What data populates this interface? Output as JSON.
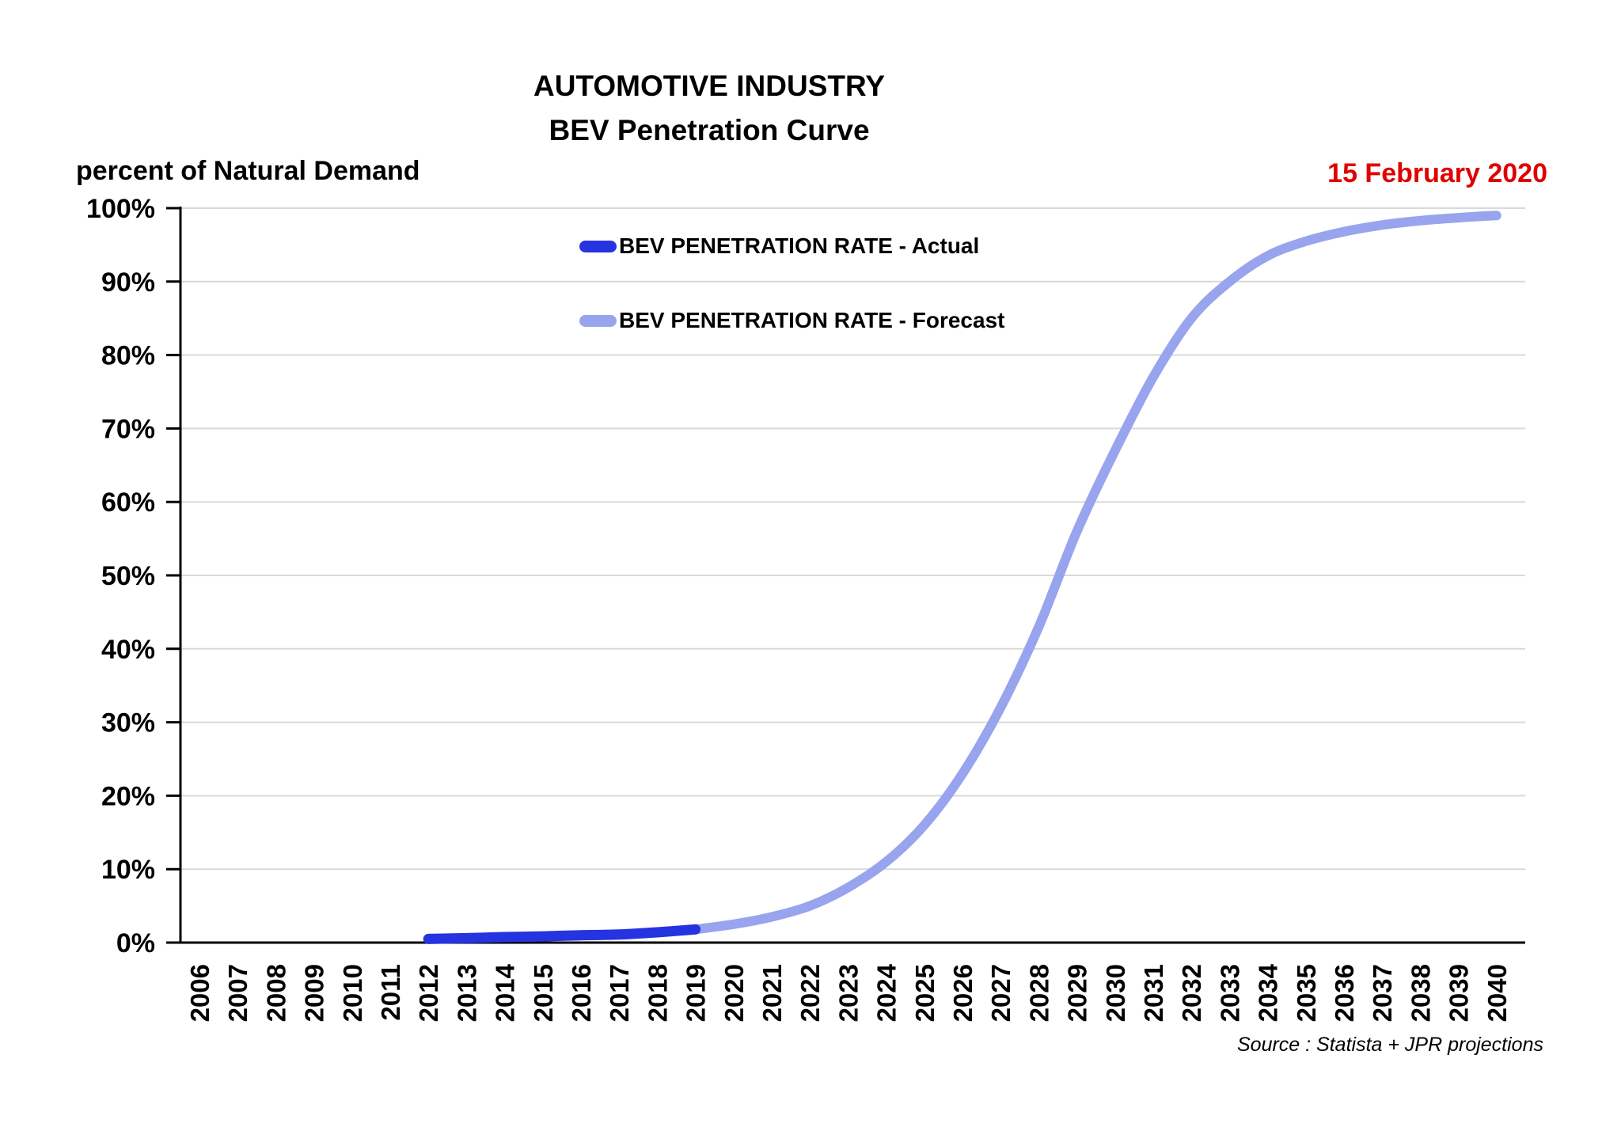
{
  "header": {
    "title_line1": "AUTOMOTIVE INDUSTRY",
    "title_line2": "BEV Penetration Curve",
    "y_axis_title": "percent of Natural Demand",
    "date": "15 February 2020",
    "date_color": "#E00000"
  },
  "footer": {
    "source": "Source : Statista + JPR projections"
  },
  "colors": {
    "actual_line": "#2533E0",
    "forecast_line": "#98A4ED",
    "gridline": "#D9D9D9",
    "axis": "#000000",
    "text": "#000000"
  },
  "chart_data": {
    "type": "line",
    "title": "AUTOMOTIVE INDUSTRY",
    "subtitle": "BEV Penetration Curve",
    "xlabel": "",
    "ylabel": "percent of Natural Demand",
    "ylim": [
      0,
      100
    ],
    "ytick_step": 10,
    "ytick_labels": [
      "0%",
      "10%",
      "20%",
      "30%",
      "40%",
      "50%",
      "60%",
      "70%",
      "80%",
      "90%",
      "100%"
    ],
    "categories": [
      "2006",
      "2007",
      "2008",
      "2009",
      "2010",
      "2011",
      "2012",
      "2013",
      "2014",
      "2015",
      "2016",
      "2017",
      "2018",
      "2019",
      "2020",
      "2021",
      "2022",
      "2023",
      "2024",
      "2025",
      "2026",
      "2027",
      "2028",
      "2029",
      "2030",
      "2031",
      "2032",
      "2033",
      "2034",
      "2035",
      "2036",
      "2037",
      "2038",
      "2039",
      "2040"
    ],
    "grid": "horizontal",
    "legend_position": "top-left-inside",
    "series": [
      {
        "name": "BEV PENETRATION RATE - Actual",
        "color": "#2533E0",
        "points": [
          [
            2012,
            0.5
          ],
          [
            2013,
            0.6
          ],
          [
            2014,
            0.75
          ],
          [
            2015,
            0.85
          ],
          [
            2016,
            1.0
          ],
          [
            2017,
            1.1
          ],
          [
            2018,
            1.4
          ],
          [
            2019,
            1.8
          ]
        ]
      },
      {
        "name": "BEV PENETRATION RATE - Forecast",
        "color": "#98A4ED",
        "points": [
          [
            2019,
            1.8
          ],
          [
            2020,
            2.5
          ],
          [
            2021,
            3.5
          ],
          [
            2022,
            5.0
          ],
          [
            2023,
            7.5
          ],
          [
            2024,
            11.0
          ],
          [
            2025,
            16.0
          ],
          [
            2026,
            23.0
          ],
          [
            2027,
            32.0
          ],
          [
            2028,
            43.0
          ],
          [
            2029,
            56.0
          ],
          [
            2030,
            67.0
          ],
          [
            2031,
            77.0
          ],
          [
            2032,
            85.0
          ],
          [
            2033,
            90.0
          ],
          [
            2034,
            93.5
          ],
          [
            2035,
            95.5
          ],
          [
            2036,
            96.8
          ],
          [
            2037,
            97.7
          ],
          [
            2038,
            98.3
          ],
          [
            2039,
            98.7
          ],
          [
            2040,
            99.0
          ]
        ]
      }
    ]
  }
}
